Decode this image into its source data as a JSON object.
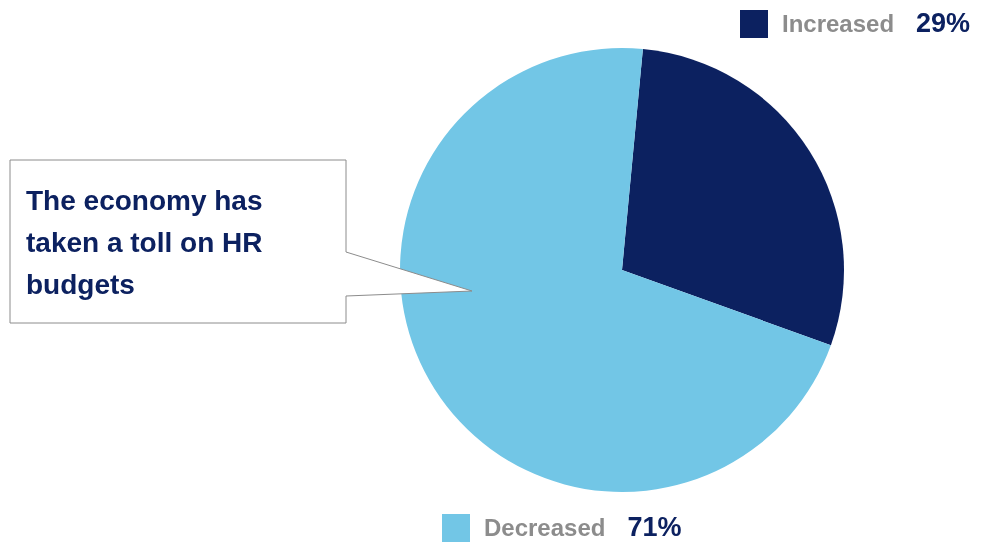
{
  "chart_data": {
    "type": "pie",
    "categories": [
      "Increased",
      "Decreased"
    ],
    "values": [
      29,
      71
    ],
    "colors": [
      "#0c2160",
      "#72c6e6"
    ],
    "value_labels": [
      "29%",
      "71%"
    ],
    "legend": "right",
    "annotations": [
      "The economy has taken a toll on HR budgets"
    ]
  }
}
